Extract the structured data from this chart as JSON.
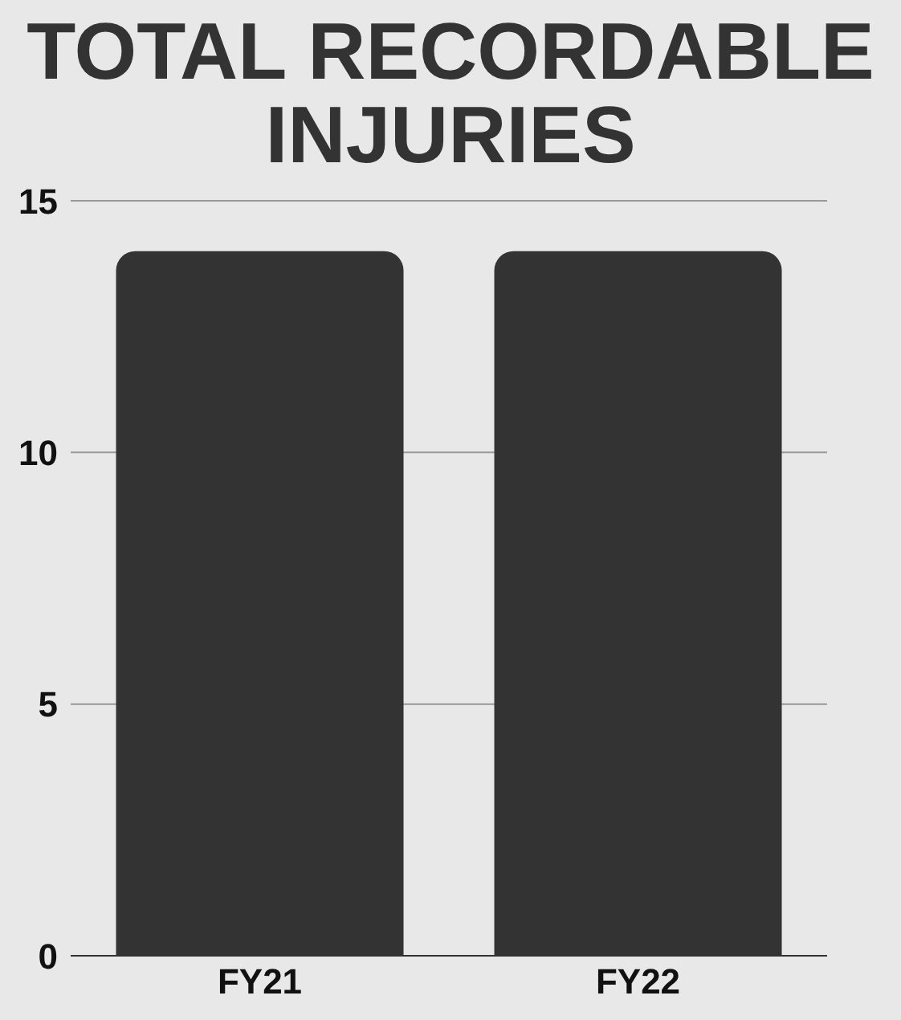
{
  "chart_data": {
    "type": "bar",
    "title": "TOTAL RECORDABLE INJURIES",
    "categories": [
      "FY21",
      "FY22"
    ],
    "values": [
      14,
      14
    ],
    "color": "#333333",
    "ylim": [
      0,
      15
    ],
    "yticks": [
      0,
      5,
      10,
      15
    ],
    "grid": "y"
  }
}
